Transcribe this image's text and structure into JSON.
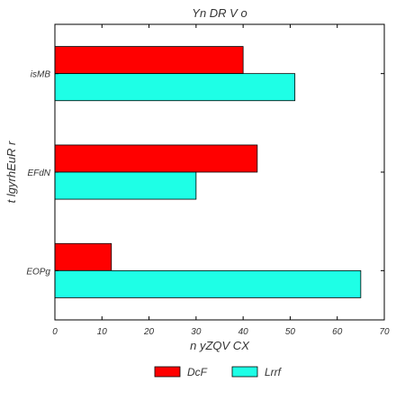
{
  "chart_data": {
    "type": "bar",
    "orientation": "horizontal",
    "title": "Yn DR V o",
    "xlabel": "n yZQV   CX",
    "ylabel": "t lgyrhEuR  r",
    "categories": [
      "isMB",
      "EFdN",
      "EOPg"
    ],
    "series": [
      {
        "name": "DcF",
        "color": "#ff0000",
        "values": [
          40,
          43,
          12
        ]
      },
      {
        "name": "Lrrf",
        "color": "#1effe6",
        "values": [
          51,
          30,
          65
        ]
      }
    ],
    "xlim": [
      0,
      70
    ],
    "xticks": [
      0,
      10,
      20,
      30,
      40,
      50,
      60,
      70
    ],
    "grid": false,
    "legend_position": "bottom-center"
  }
}
